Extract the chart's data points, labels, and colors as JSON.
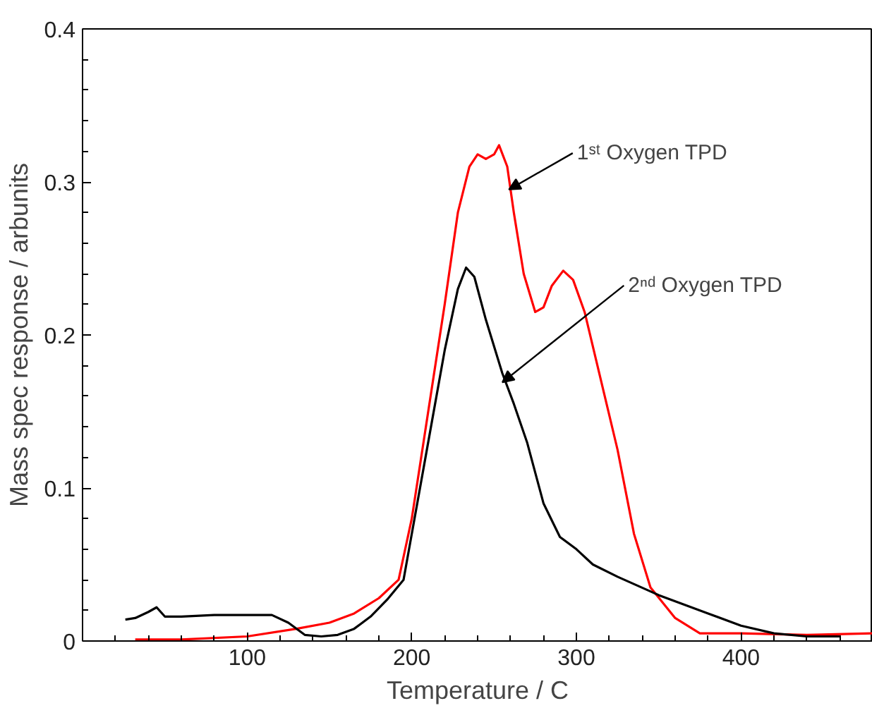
{
  "chart_data": {
    "type": "line",
    "xlabel": "Temperature / C",
    "ylabel": "Mass spec response / arbunits",
    "xlim": [
      0,
      480
    ],
    "ylim": [
      0,
      0.4
    ],
    "xticks": [
      {
        "value": 20,
        "label": null
      },
      {
        "value": 40,
        "label": null
      },
      {
        "value": 60,
        "label": null
      },
      {
        "value": 80,
        "label": null
      },
      100,
      {
        "value": 120,
        "label": null
      },
      {
        "value": 140,
        "label": null
      },
      {
        "value": 160,
        "label": null
      },
      {
        "value": 180,
        "label": null
      },
      200,
      {
        "value": 220,
        "label": null
      },
      {
        "value": 240,
        "label": null
      },
      {
        "value": 260,
        "label": null
      },
      {
        "value": 280,
        "label": null
      },
      300,
      {
        "value": 320,
        "label": null
      },
      {
        "value": 340,
        "label": null
      },
      {
        "value": 360,
        "label": null
      },
      {
        "value": 380,
        "label": null
      },
      400,
      {
        "value": 420,
        "label": null
      },
      {
        "value": 440,
        "label": null
      },
      {
        "value": 460,
        "label": null
      }
    ],
    "yticks": [
      0,
      {
        "value": 0.02,
        "label": null
      },
      {
        "value": 0.04,
        "label": null
      },
      {
        "value": 0.06,
        "label": null
      },
      {
        "value": 0.08,
        "label": null
      },
      0.1,
      {
        "value": 0.12,
        "label": null
      },
      {
        "value": 0.14,
        "label": null
      },
      {
        "value": 0.16,
        "label": null
      },
      {
        "value": 0.18,
        "label": null
      },
      0.2,
      {
        "value": 0.22,
        "label": null
      },
      {
        "value": 0.24,
        "label": null
      },
      {
        "value": 0.26,
        "label": null
      },
      {
        "value": 0.28,
        "label": null
      },
      0.3,
      {
        "value": 0.32,
        "label": null
      },
      {
        "value": 0.34,
        "label": null
      },
      {
        "value": 0.36,
        "label": null
      },
      {
        "value": 0.38,
        "label": null
      },
      0.4
    ],
    "grid": false,
    "series": [
      {
        "color": "#ff0000",
        "x": [
          32,
          60,
          100,
          130,
          150,
          165,
          180,
          192,
          200,
          210,
          220,
          228,
          235,
          240,
          245,
          250,
          253,
          258,
          262,
          268,
          275,
          280,
          285,
          292,
          298,
          305,
          315,
          325,
          335,
          345,
          360,
          375,
          400,
          440,
          480
        ],
        "values": [
          0.001,
          0.001,
          0.003,
          0.008,
          0.012,
          0.018,
          0.028,
          0.04,
          0.08,
          0.15,
          0.22,
          0.28,
          0.31,
          0.318,
          0.315,
          0.318,
          0.324,
          0.31,
          0.28,
          0.24,
          0.215,
          0.218,
          0.232,
          0.242,
          0.236,
          0.215,
          0.17,
          0.125,
          0.07,
          0.035,
          0.015,
          0.005,
          0.005,
          0.004,
          0.005
        ]
      },
      {
        "color": "#000000",
        "x": [
          26,
          32,
          40,
          45,
          50,
          60,
          80,
          100,
          115,
          125,
          135,
          145,
          155,
          165,
          175,
          185,
          195,
          200,
          210,
          220,
          228,
          233,
          238,
          245,
          255,
          262,
          270,
          280,
          290,
          300,
          310,
          325,
          350,
          380,
          400,
          420,
          440,
          460
        ],
        "values": [
          0.014,
          0.015,
          0.019,
          0.022,
          0.016,
          0.016,
          0.017,
          0.017,
          0.017,
          0.012,
          0.004,
          0.003,
          0.004,
          0.008,
          0.016,
          0.027,
          0.04,
          0.07,
          0.13,
          0.19,
          0.23,
          0.244,
          0.238,
          0.21,
          0.175,
          0.155,
          0.13,
          0.09,
          0.068,
          0.06,
          0.05,
          0.042,
          0.03,
          0.018,
          0.01,
          0.005,
          0.003,
          0.003
        ]
      }
    ],
    "annotations": [
      {
        "text": "1ˢᵗ Oxygen TPD",
        "x": 259,
        "y": 0.295
      },
      {
        "text": "2ⁿᵈ Oxygen TPD",
        "x": 255,
        "y": 0.169
      }
    ]
  }
}
